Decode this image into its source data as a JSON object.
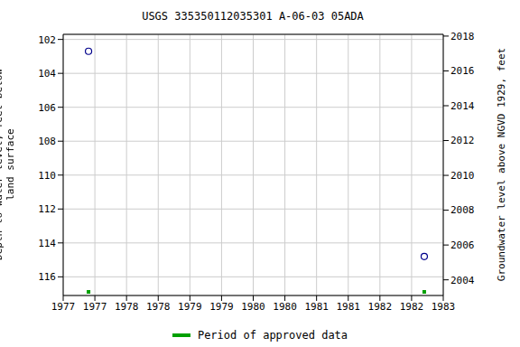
{
  "chart_data": {
    "type": "scatter",
    "title": "USGS 335350112035301 A-06-03 05ADA",
    "y_label": "Depth to water level, feet below land surface",
    "y2_label": "Groundwater level above NGVD 1929, feet",
    "x": [
      1977.4,
      1982.7
    ],
    "values": [
      102.7,
      114.8
    ],
    "color": "#00008b",
    "marker": "circle",
    "approved_periods": {
      "name": "Period of approved data",
      "color": "#00a000",
      "x": [
        1977.4,
        1982.7
      ]
    },
    "xlim": [
      1977,
      1983
    ],
    "xticks": [
      {
        "value": 1977,
        "label": "1977"
      },
      {
        "value": 1977.5,
        "label": "1977"
      },
      {
        "value": 1978,
        "label": "1978"
      },
      {
        "value": 1978.5,
        "label": "1978"
      },
      {
        "value": 1979,
        "label": "1979"
      },
      {
        "value": 1979.5,
        "label": "1979"
      },
      {
        "value": 1980,
        "label": "1980"
      },
      {
        "value": 1980.5,
        "label": "1980"
      },
      {
        "value": 1981,
        "label": "1981"
      },
      {
        "value": 1981.5,
        "label": "1981"
      },
      {
        "value": 1982,
        "label": "1982"
      },
      {
        "value": 1982.5,
        "label": "1982"
      },
      {
        "value": 1983,
        "label": "1983"
      }
    ],
    "ylim": [
      117.1,
      101.7
    ],
    "yticks": [
      102,
      104,
      106,
      108,
      110,
      112,
      114,
      116
    ],
    "y2lim": [
      2003.1,
      2018.1
    ],
    "y2ticks": [
      2004,
      2006,
      2008,
      2010,
      2012,
      2014,
      2016,
      2018
    ],
    "grid": true,
    "legend": "bottom"
  }
}
